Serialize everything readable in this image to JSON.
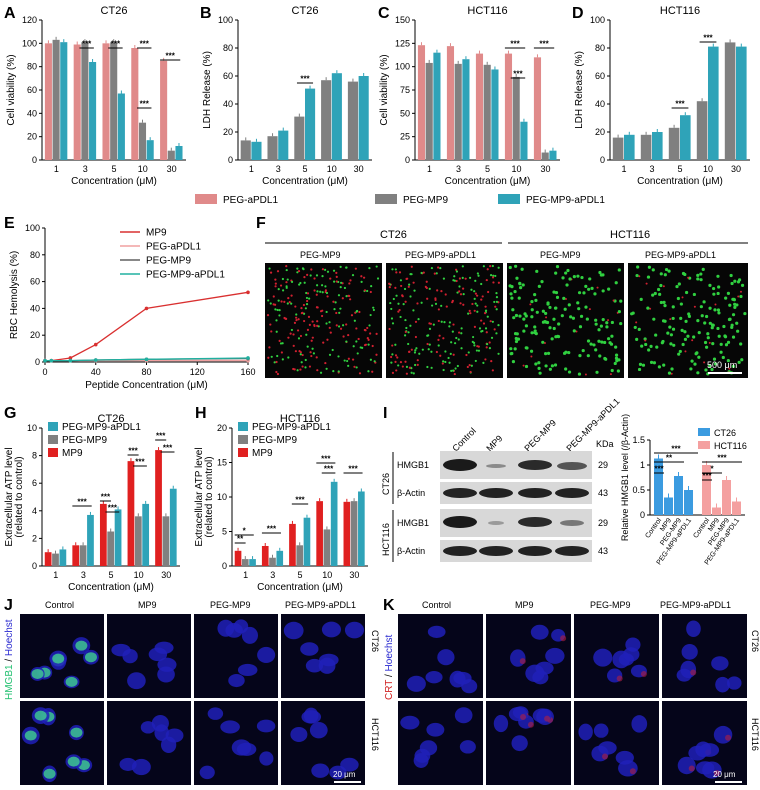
{
  "colors": {
    "peg_apdl1": "#e08a8a",
    "peg_mp9": "#808080",
    "peg_mp9_apdl1": "#2fa3b8",
    "mp9_line": "#d93030",
    "mp9_bar": "#e02020",
    "ct26_bar": "#3b9be0",
    "hct116_bar": "#f4a0a0"
  },
  "panel_letters": [
    "A",
    "B",
    "C",
    "D",
    "E",
    "F",
    "G",
    "H",
    "I",
    "J",
    "K"
  ],
  "top_legend": {
    "items": [
      "PEG-aPDL1",
      "PEG-MP9",
      "PEG-MP9-aPDL1"
    ]
  },
  "chart_data": [
    {
      "id": "A",
      "type": "bar",
      "title": "CT26",
      "xlabel": "Concentration (μM)",
      "ylabel": "Cell viability (%)",
      "ylim": [
        0,
        120
      ],
      "yticks": [
        0,
        20,
        40,
        60,
        80,
        100,
        120
      ],
      "categories": [
        "1",
        "3",
        "5",
        "10",
        "30"
      ],
      "series": [
        {
          "name": "PEG-aPDL1",
          "values": [
            100,
            99,
            100,
            96,
            85
          ]
        },
        {
          "name": "PEG-MP9",
          "values": [
            103,
            101,
            101,
            32,
            8
          ]
        },
        {
          "name": "PEG-MP9-aPDL1",
          "values": [
            101,
            84,
            57,
            17,
            12
          ]
        }
      ],
      "significance": [
        "***",
        "***",
        "***",
        "***",
        "***",
        "***"
      ]
    },
    {
      "id": "B",
      "type": "bar",
      "title": "CT26",
      "xlabel": "Concentration (μM)",
      "ylabel": "LDH Release (%)",
      "ylim": [
        0,
        100
      ],
      "yticks": [
        0,
        20,
        40,
        60,
        80,
        100
      ],
      "categories": [
        "1",
        "3",
        "5",
        "10",
        "30"
      ],
      "series": [
        {
          "name": "PEG-MP9",
          "values": [
            14,
            17,
            31,
            57,
            56
          ]
        },
        {
          "name": "PEG-MP9-aPDL1",
          "values": [
            13,
            21,
            51,
            62,
            60
          ]
        }
      ],
      "significance": [
        "***"
      ]
    },
    {
      "id": "C",
      "type": "bar",
      "title": "HCT116",
      "xlabel": "Concentration (μM)",
      "ylabel": "Cell viability (%)",
      "ylim": [
        0,
        150
      ],
      "yticks": [
        0,
        25,
        50,
        75,
        100,
        125,
        150
      ],
      "categories": [
        "1",
        "3",
        "5",
        "10",
        "30"
      ],
      "series": [
        {
          "name": "PEG-aPDL1",
          "values": [
            123,
            122,
            114,
            114,
            110
          ]
        },
        {
          "name": "PEG-MP9",
          "values": [
            104,
            103,
            102,
            89,
            8
          ]
        },
        {
          "name": "PEG-MP9-aPDL1",
          "values": [
            115,
            108,
            97,
            41,
            10
          ]
        }
      ],
      "significance": [
        "***",
        "***",
        "***"
      ]
    },
    {
      "id": "D",
      "type": "bar",
      "title": "HCT116",
      "xlabel": "Concentration (μM)",
      "ylabel": "LDH Release (%)",
      "ylim": [
        0,
        100
      ],
      "yticks": [
        0,
        20,
        40,
        60,
        80,
        100
      ],
      "categories": [
        "1",
        "3",
        "5",
        "10",
        "30"
      ],
      "series": [
        {
          "name": "PEG-MP9",
          "values": [
            16,
            18,
            23,
            42,
            84
          ]
        },
        {
          "name": "PEG-MP9-aPDL1",
          "values": [
            18,
            20,
            32,
            81,
            81
          ]
        }
      ],
      "significance": [
        "***",
        "***"
      ]
    },
    {
      "id": "E",
      "type": "line",
      "xlabel": "Peptide Concentration (μM)",
      "ylabel": "RBC Hemolysis (%)",
      "xlim": [
        0,
        160
      ],
      "xticks": [
        0,
        40,
        80,
        120,
        160
      ],
      "ylim": [
        0,
        100
      ],
      "yticks": [
        0,
        20,
        40,
        60,
        80,
        100
      ],
      "series": [
        {
          "name": "MP9",
          "x": [
            0,
            5,
            20,
            40,
            80,
            160
          ],
          "y": [
            1,
            1,
            3,
            13,
            40,
            52
          ]
        },
        {
          "name": "PEG-aPDL1",
          "x": [
            0,
            5,
            20,
            40,
            80,
            160
          ],
          "y": [
            1,
            1,
            1,
            1,
            1,
            1
          ]
        },
        {
          "name": "PEG-MP9",
          "x": [
            0,
            5,
            20,
            40,
            80,
            160
          ],
          "y": [
            1,
            1,
            1,
            1.5,
            2,
            2.5
          ]
        },
        {
          "name": "PEG-MP9-aPDL1",
          "x": [
            0,
            5,
            20,
            40,
            80,
            160
          ],
          "y": [
            1,
            1,
            1,
            1.5,
            2,
            3
          ]
        }
      ]
    },
    {
      "id": "G",
      "type": "bar",
      "title": "CT26",
      "xlabel": "Concentration (μM)",
      "ylabel": "Extracellular ATP level",
      "ylabel2": "(related to control)",
      "ylim": [
        0,
        10
      ],
      "yticks": [
        0,
        2,
        4,
        6,
        8,
        10
      ],
      "categories": [
        "1",
        "3",
        "5",
        "10",
        "30"
      ],
      "series": [
        {
          "name": "MP9",
          "values": [
            1.0,
            1.5,
            4.5,
            7.6,
            8.4
          ]
        },
        {
          "name": "PEG-MP9",
          "values": [
            0.9,
            1.5,
            2.5,
            3.6,
            3.6
          ]
        },
        {
          "name": "PEG-MP9-aPDL1",
          "values": [
            1.2,
            3.7,
            4.1,
            4.5,
            5.6
          ]
        }
      ],
      "legend_order": [
        "PEG-MP9-aPDL1",
        "PEG-MP9",
        "MP9"
      ],
      "significance": [
        "***",
        "***",
        "***",
        "***",
        "***",
        "***",
        "***",
        "***"
      ]
    },
    {
      "id": "H",
      "type": "bar",
      "title": "HCT116",
      "xlabel": "Concentration (μM)",
      "ylabel": "Extracellular ATP level",
      "ylabel2": "(related to control)",
      "ylim": [
        0,
        20
      ],
      "yticks": [
        0,
        5,
        10,
        15,
        20
      ],
      "categories": [
        "1",
        "3",
        "5",
        "10",
        "30"
      ],
      "series": [
        {
          "name": "MP9",
          "values": [
            2.2,
            2.9,
            6.1,
            9.4,
            9.3
          ]
        },
        {
          "name": "PEG-MP9",
          "values": [
            1.0,
            1.2,
            3.0,
            5.3,
            9.4
          ]
        },
        {
          "name": "PEG-MP9-aPDL1",
          "values": [
            1.0,
            2.2,
            7.0,
            12.2,
            10.8
          ]
        }
      ],
      "legend_order": [
        "PEG-MP9-aPDL1",
        "PEG-MP9",
        "MP9"
      ],
      "significance": [
        "*",
        "**",
        "***",
        "***",
        "***",
        "***",
        "***"
      ]
    },
    {
      "id": "I",
      "type": "bar",
      "ylabel": "Relative HMGB1 level (/β-Actin)",
      "ylim": [
        0,
        1.5
      ],
      "yticks": [
        0,
        0.5,
        1.0,
        1.5
      ],
      "categories": [
        "Control",
        "MP9",
        "PEG-MP9",
        "PEG-MP9-aPDL1"
      ],
      "series": [
        {
          "name": "CT26",
          "values": [
            1.13,
            0.35,
            0.78,
            0.5
          ]
        },
        {
          "name": "HCT116",
          "values": [
            1.0,
            0.15,
            0.7,
            0.27
          ]
        }
      ],
      "significance": [
        "***",
        "**",
        "***",
        "***",
        "*",
        "***"
      ]
    }
  ],
  "panel_F": {
    "top_labels": [
      "CT26",
      "HCT116"
    ],
    "sub_labels": [
      "PEG-MP9",
      "PEG-MP9-aPDL1",
      "PEG-MP9",
      "PEG-MP9-aPDL1"
    ],
    "scale_bar": "500 μm"
  },
  "panel_I_blot": {
    "lanes": [
      "Control",
      "MP9",
      "PEG-MP9",
      "PEG-MP9-aPDL1"
    ],
    "kda_label": "KDa",
    "rows": [
      {
        "label": "HMGB1",
        "kda": "29"
      },
      {
        "label": "β-Actin",
        "kda": "43"
      },
      {
        "label": "HMGB1",
        "kda": "29"
      },
      {
        "label": "β-Actin",
        "kda": "43"
      }
    ],
    "groups": [
      "CT26",
      "HCT116"
    ]
  },
  "panel_J": {
    "columns": [
      "Control",
      "MP9",
      "PEG-MP9",
      "PEG-MP9-aPDL1"
    ],
    "rows": [
      "CT26",
      "HCT116"
    ],
    "side_label_a": "HMGB1",
    "side_label_sep": " / ",
    "side_label_b": "Hoechst",
    "scale_bar": "20 μm"
  },
  "panel_K": {
    "columns": [
      "Control",
      "MP9",
      "PEG-MP9",
      "PEG-MP9-aPDL1"
    ],
    "rows": [
      "CT26",
      "HCT116"
    ],
    "side_label_a": "CRT",
    "side_label_sep": " / ",
    "side_label_b": "Hoechst",
    "scale_bar": "20 μm"
  }
}
